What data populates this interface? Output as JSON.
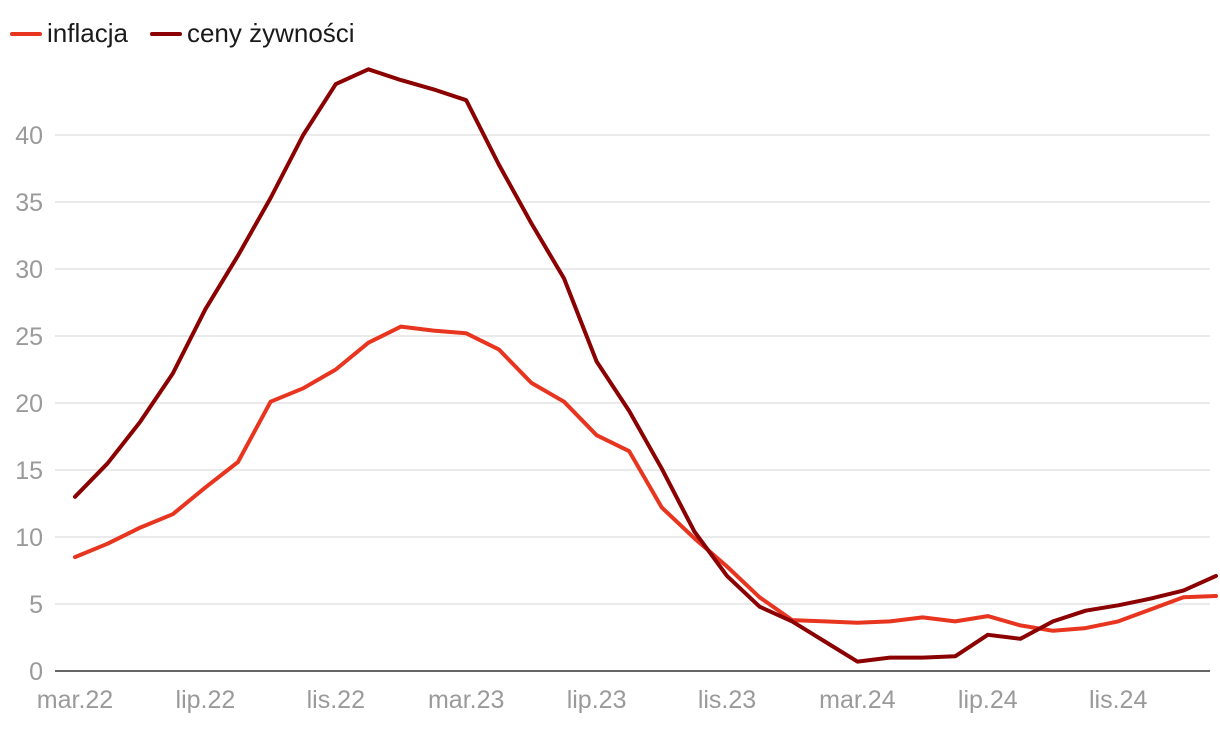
{
  "chart_data": {
    "type": "line",
    "x": [
      "mar.22",
      "kwi.22",
      "maj.22",
      "cze.22",
      "lip.22",
      "sie.22",
      "wrz.22",
      "paź.22",
      "lis.22",
      "gru.22",
      "sty.23",
      "lut.23",
      "mar.23",
      "kwi.23",
      "maj.23",
      "cze.23",
      "lip.23",
      "sie.23",
      "wrz.23",
      "paź.23",
      "lis.23",
      "gru.23",
      "sty.24",
      "lut.24",
      "mar.24",
      "kwi.24",
      "maj.24",
      "cze.24",
      "lip.24",
      "sie.24",
      "wrz.24",
      "paź.24",
      "lis.24",
      "gru.24",
      "sty.25",
      "lut.25"
    ],
    "xtick_labels": [
      "mar.22",
      "lip.22",
      "lis.22",
      "mar.23",
      "lip.23",
      "lis.23",
      "mar.24",
      "lip.24",
      "lis.24"
    ],
    "xtick_positions": [
      "mar.22",
      "lip.22",
      "lis.22",
      "mar.23",
      "lip.23",
      "lis.23",
      "mar.24",
      "lip.24",
      "lis.24"
    ],
    "ytick_labels": [
      "0",
      "5",
      "10",
      "15",
      "20",
      "25",
      "30",
      "35",
      "40"
    ],
    "ylim": [
      0,
      45
    ],
    "grid": true,
    "legend_position": "top-left",
    "series": [
      {
        "name": "inflacja",
        "color": "#e8351f",
        "values": [
          8.5,
          9.5,
          10.7,
          11.7,
          13.7,
          15.6,
          20.1,
          21.1,
          22.5,
          24.5,
          25.7,
          25.4,
          25.2,
          24.0,
          21.5,
          20.1,
          17.6,
          16.4,
          12.2,
          9.9,
          7.8,
          5.5,
          3.8,
          3.7,
          3.6,
          3.7,
          4.0,
          3.7,
          4.1,
          3.4,
          3.0,
          3.2,
          3.7,
          4.6,
          5.5,
          5.6
        ]
      },
      {
        "name": "ceny żywności",
        "color": "#8b0000",
        "values": [
          13.0,
          15.5,
          18.6,
          22.2,
          27.0,
          31.0,
          35.3,
          40.0,
          43.8,
          44.9,
          44.1,
          43.4,
          42.6,
          37.8,
          33.4,
          29.3,
          23.1,
          19.4,
          15.1,
          10.4,
          7.1,
          4.8,
          3.7,
          2.2,
          0.7,
          1.0,
          1.0,
          1.1,
          2.7,
          2.4,
          3.7,
          4.5,
          4.9,
          5.4,
          6.0,
          7.1
        ]
      }
    ]
  }
}
